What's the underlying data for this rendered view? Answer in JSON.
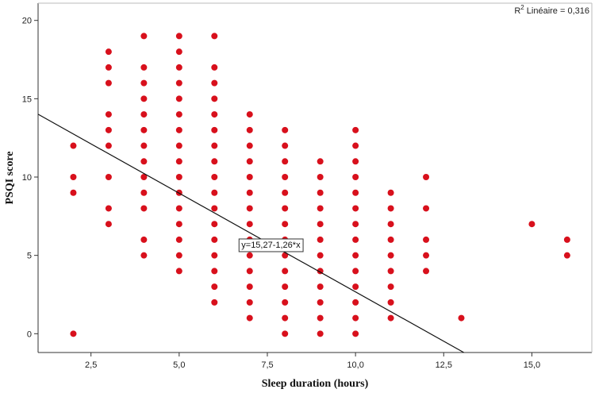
{
  "chart_data": {
    "type": "scatter",
    "xlabel": "Sleep duration (hours)",
    "ylabel": "PSQI score",
    "xlim": [
      1.0,
      16.7
    ],
    "ylim": [
      -1.2,
      21.1
    ],
    "x_ticks": [
      2.5,
      5.0,
      7.5,
      10.0,
      12.5,
      15.0
    ],
    "x_tick_labels": [
      "2,5",
      "5,0",
      "7,5",
      "10,0",
      "12,5",
      "15,0"
    ],
    "y_ticks": [
      0,
      5,
      10,
      15,
      20
    ],
    "y_tick_labels": [
      "0",
      "5",
      "10",
      "15",
      "20"
    ],
    "point_color": "#d8101c",
    "line_color": "#111111",
    "fit_line": {
      "intercept": 15.27,
      "slope": -1.26,
      "label": "y=15,27-1,26*x"
    },
    "r2_prefix": "R",
    "r2_sup": "2",
    "r2_text": " Linéaire = 0,316",
    "grid": false,
    "points": [
      {
        "x": 2,
        "y": 0
      },
      {
        "x": 2,
        "y": 9
      },
      {
        "x": 2,
        "y": 10
      },
      {
        "x": 2,
        "y": 12
      },
      {
        "x": 3,
        "y": 7
      },
      {
        "x": 3,
        "y": 8
      },
      {
        "x": 3,
        "y": 10
      },
      {
        "x": 3,
        "y": 12
      },
      {
        "x": 3,
        "y": 13
      },
      {
        "x": 3,
        "y": 14
      },
      {
        "x": 3,
        "y": 16
      },
      {
        "x": 3,
        "y": 17
      },
      {
        "x": 3,
        "y": 18
      },
      {
        "x": 4,
        "y": 5
      },
      {
        "x": 4,
        "y": 6
      },
      {
        "x": 4,
        "y": 8
      },
      {
        "x": 4,
        "y": 9
      },
      {
        "x": 4,
        "y": 10
      },
      {
        "x": 4,
        "y": 11
      },
      {
        "x": 4,
        "y": 12
      },
      {
        "x": 4,
        "y": 13
      },
      {
        "x": 4,
        "y": 14
      },
      {
        "x": 4,
        "y": 15
      },
      {
        "x": 4,
        "y": 16
      },
      {
        "x": 4,
        "y": 17
      },
      {
        "x": 4,
        "y": 19
      },
      {
        "x": 5,
        "y": 4
      },
      {
        "x": 5,
        "y": 5
      },
      {
        "x": 5,
        "y": 6
      },
      {
        "x": 5,
        "y": 7
      },
      {
        "x": 5,
        "y": 8
      },
      {
        "x": 5,
        "y": 9
      },
      {
        "x": 5,
        "y": 10
      },
      {
        "x": 5,
        "y": 11
      },
      {
        "x": 5,
        "y": 12
      },
      {
        "x": 5,
        "y": 13
      },
      {
        "x": 5,
        "y": 14
      },
      {
        "x": 5,
        "y": 15
      },
      {
        "x": 5,
        "y": 16
      },
      {
        "x": 5,
        "y": 17
      },
      {
        "x": 5,
        "y": 18
      },
      {
        "x": 5,
        "y": 19
      },
      {
        "x": 6,
        "y": 2
      },
      {
        "x": 6,
        "y": 3
      },
      {
        "x": 6,
        "y": 4
      },
      {
        "x": 6,
        "y": 5
      },
      {
        "x": 6,
        "y": 6
      },
      {
        "x": 6,
        "y": 7
      },
      {
        "x": 6,
        "y": 8
      },
      {
        "x": 6,
        "y": 9
      },
      {
        "x": 6,
        "y": 10
      },
      {
        "x": 6,
        "y": 11
      },
      {
        "x": 6,
        "y": 12
      },
      {
        "x": 6,
        "y": 13
      },
      {
        "x": 6,
        "y": 14
      },
      {
        "x": 6,
        "y": 15
      },
      {
        "x": 6,
        "y": 16
      },
      {
        "x": 6,
        "y": 17
      },
      {
        "x": 6,
        "y": 19
      },
      {
        "x": 7,
        "y": 1
      },
      {
        "x": 7,
        "y": 2
      },
      {
        "x": 7,
        "y": 3
      },
      {
        "x": 7,
        "y": 4
      },
      {
        "x": 7,
        "y": 5
      },
      {
        "x": 7,
        "y": 6
      },
      {
        "x": 7,
        "y": 7
      },
      {
        "x": 7,
        "y": 8
      },
      {
        "x": 7,
        "y": 9
      },
      {
        "x": 7,
        "y": 10
      },
      {
        "x": 7,
        "y": 11
      },
      {
        "x": 7,
        "y": 12
      },
      {
        "x": 7,
        "y": 13
      },
      {
        "x": 7,
        "y": 14
      },
      {
        "x": 8,
        "y": 0
      },
      {
        "x": 8,
        "y": 1
      },
      {
        "x": 8,
        "y": 2
      },
      {
        "x": 8,
        "y": 3
      },
      {
        "x": 8,
        "y": 4
      },
      {
        "x": 8,
        "y": 5
      },
      {
        "x": 8,
        "y": 6
      },
      {
        "x": 8,
        "y": 7
      },
      {
        "x": 8,
        "y": 8
      },
      {
        "x": 8,
        "y": 9
      },
      {
        "x": 8,
        "y": 10
      },
      {
        "x": 8,
        "y": 11
      },
      {
        "x": 8,
        "y": 12
      },
      {
        "x": 8,
        "y": 13
      },
      {
        "x": 9,
        "y": 0
      },
      {
        "x": 9,
        "y": 1
      },
      {
        "x": 9,
        "y": 2
      },
      {
        "x": 9,
        "y": 3
      },
      {
        "x": 9,
        "y": 4
      },
      {
        "x": 9,
        "y": 5
      },
      {
        "x": 9,
        "y": 6
      },
      {
        "x": 9,
        "y": 7
      },
      {
        "x": 9,
        "y": 8
      },
      {
        "x": 9,
        "y": 9
      },
      {
        "x": 9,
        "y": 10
      },
      {
        "x": 9,
        "y": 11
      },
      {
        "x": 10,
        "y": 0
      },
      {
        "x": 10,
        "y": 1
      },
      {
        "x": 10,
        "y": 2
      },
      {
        "x": 10,
        "y": 3
      },
      {
        "x": 10,
        "y": 4
      },
      {
        "x": 10,
        "y": 5
      },
      {
        "x": 10,
        "y": 6
      },
      {
        "x": 10,
        "y": 7
      },
      {
        "x": 10,
        "y": 8
      },
      {
        "x": 10,
        "y": 9
      },
      {
        "x": 10,
        "y": 10
      },
      {
        "x": 10,
        "y": 11
      },
      {
        "x": 10,
        "y": 12
      },
      {
        "x": 10,
        "y": 13
      },
      {
        "x": 11,
        "y": 1
      },
      {
        "x": 11,
        "y": 2
      },
      {
        "x": 11,
        "y": 3
      },
      {
        "x": 11,
        "y": 4
      },
      {
        "x": 11,
        "y": 5
      },
      {
        "x": 11,
        "y": 6
      },
      {
        "x": 11,
        "y": 7
      },
      {
        "x": 11,
        "y": 8
      },
      {
        "x": 11,
        "y": 9
      },
      {
        "x": 12,
        "y": 4
      },
      {
        "x": 12,
        "y": 5
      },
      {
        "x": 12,
        "y": 6
      },
      {
        "x": 12,
        "y": 8
      },
      {
        "x": 12,
        "y": 10
      },
      {
        "x": 13,
        "y": 1
      },
      {
        "x": 15,
        "y": 7
      },
      {
        "x": 16,
        "y": 5
      },
      {
        "x": 16,
        "y": 6
      }
    ]
  }
}
